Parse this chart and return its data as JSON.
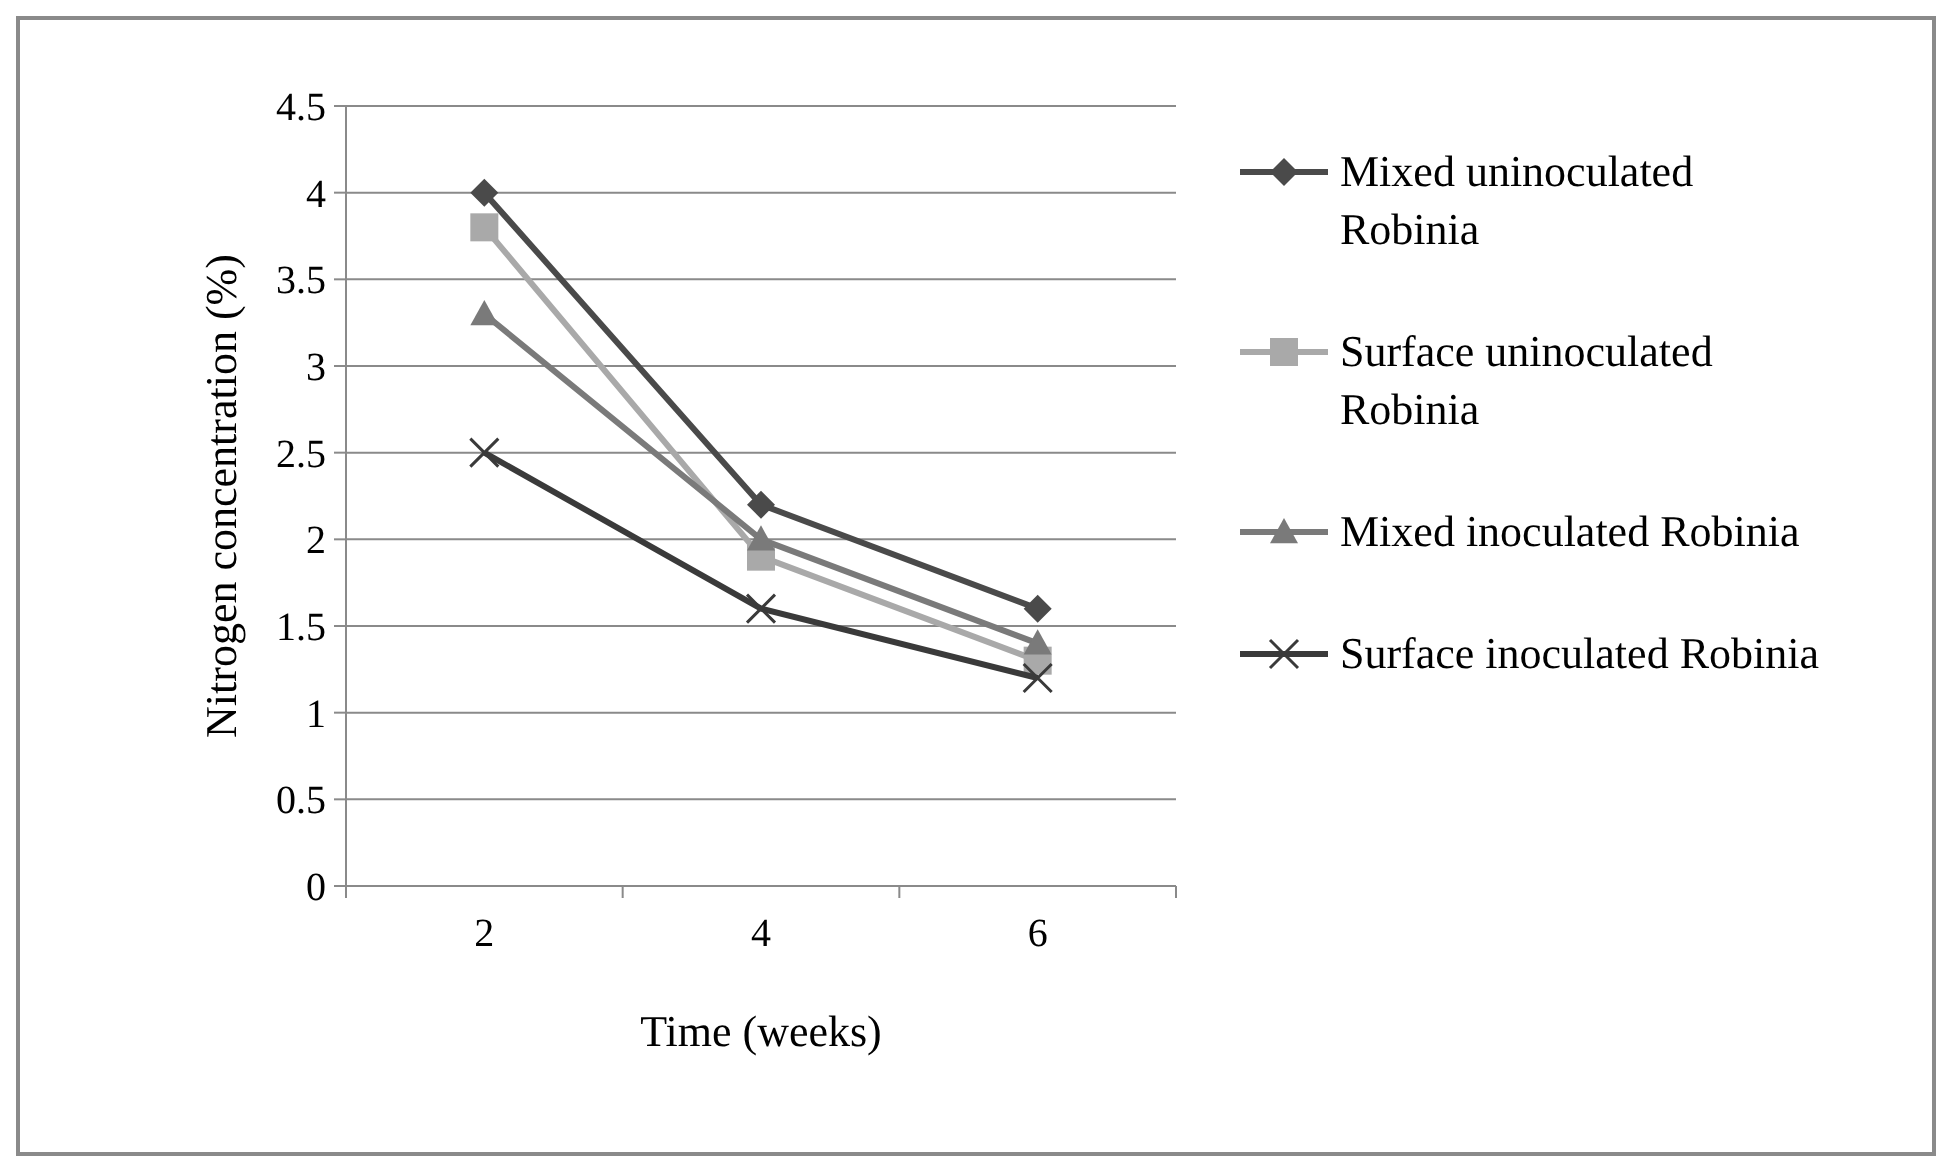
{
  "chart_data": {
    "type": "line",
    "xlabel": "Time (weeks)",
    "ylabel": "Nitrogen concentration (%)",
    "categories": [
      "2",
      "4",
      "6"
    ],
    "ylim": [
      0,
      4.5
    ],
    "yticks": [
      0,
      0.5,
      1,
      1.5,
      2,
      2.5,
      3,
      3.5,
      4,
      4.5
    ],
    "grid": "y",
    "legend": "right",
    "line_style": "solid",
    "series": [
      {
        "name": "Mixed uninoculated Robinia",
        "color": "#4a4a4a",
        "marker": "diamond",
        "values": [
          4,
          2.2,
          1.6
        ]
      },
      {
        "name": "Surface uninoculated Robinia",
        "color": "#a9a9a9",
        "marker": "square",
        "values": [
          3.8,
          1.9,
          1.3
        ]
      },
      {
        "name": "Mixed inoculated Robinia",
        "color": "#7a7a7a",
        "marker": "triangle",
        "values": [
          3.3,
          2.0,
          1.4
        ]
      },
      {
        "name": "Surface inoculated Robinia",
        "color": "#3a3a3a",
        "marker": "cross",
        "values": [
          2.5,
          1.6,
          1.2
        ]
      }
    ]
  }
}
